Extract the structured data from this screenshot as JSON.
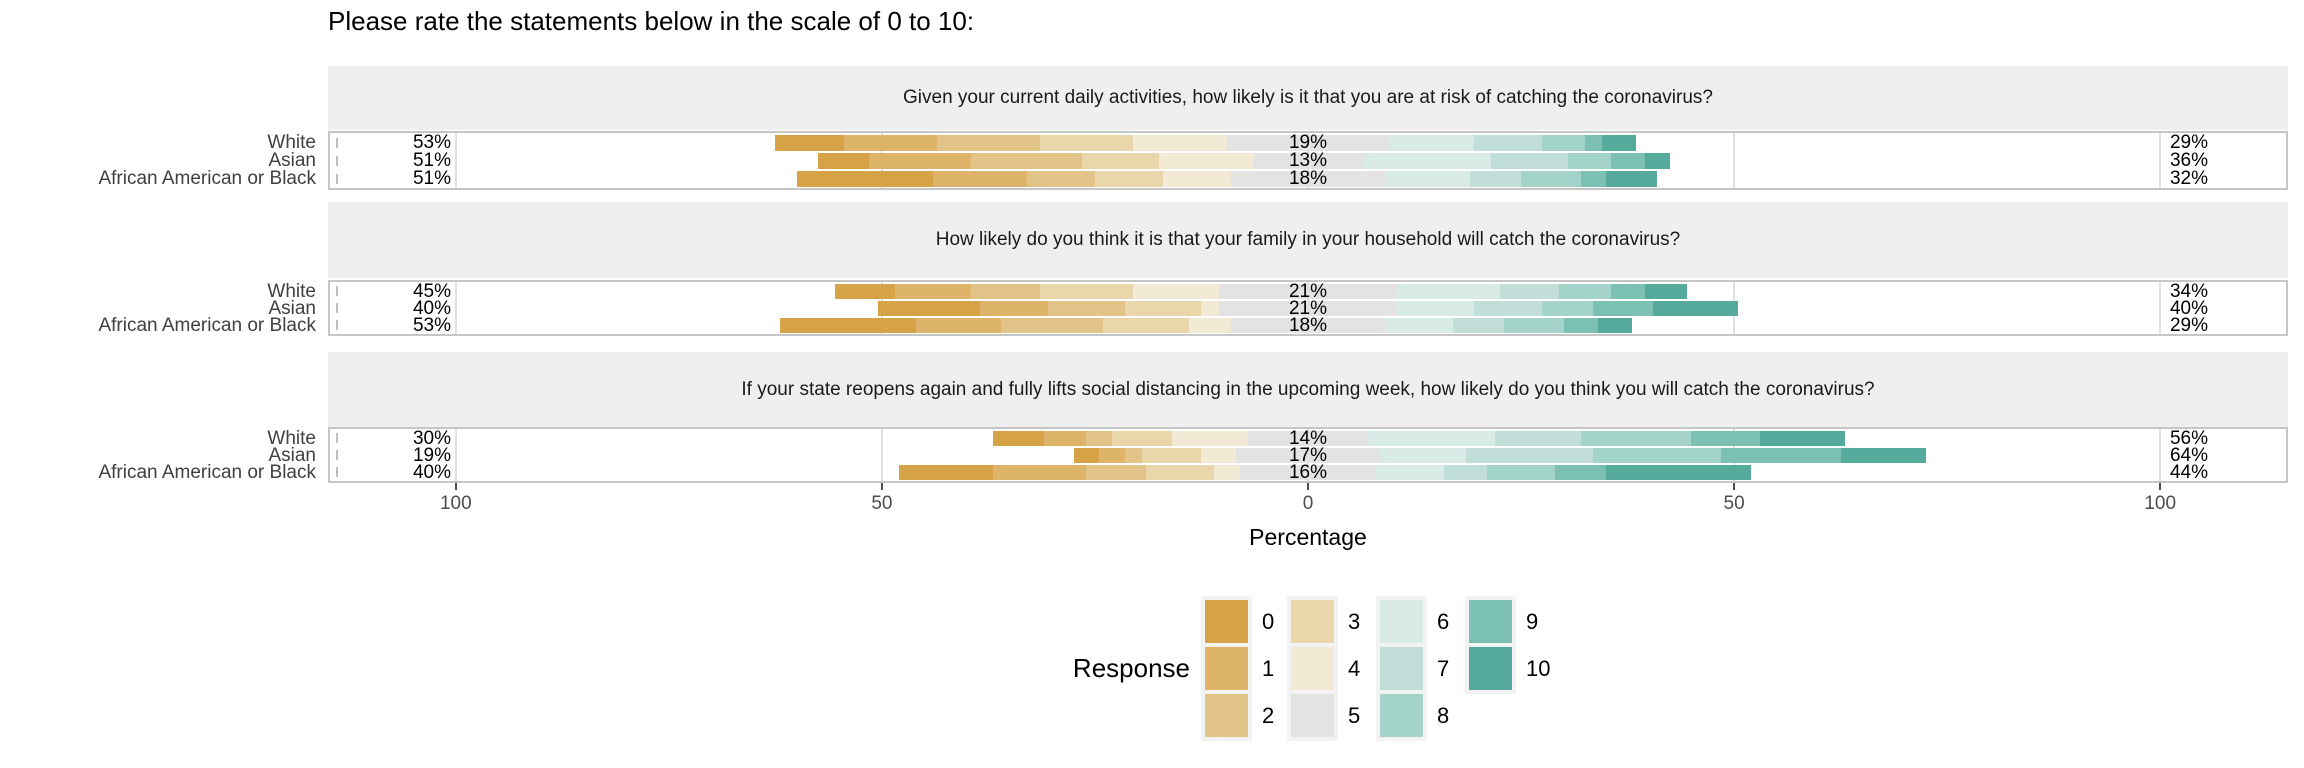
{
  "title": "Please rate the statements below in the scale of 0 to 10:",
  "chart_data": {
    "type": "bar",
    "subtype": "diverging-stacked-likert",
    "legend_title": "Response",
    "responses": [
      "0",
      "1",
      "2",
      "3",
      "4",
      "5",
      "6",
      "7",
      "8",
      "9",
      "10"
    ],
    "palette": [
      "#d6a346",
      "#ddb46a",
      "#e2c488",
      "#e9d6ab",
      "#f3ead6",
      "#e3e3e3",
      "#d9ebe7",
      "#c1ded8",
      "#a3d3c9",
      "#7cc0b4",
      "#56aa9b"
    ],
    "ui_colors": {
      "strip_background": "#efefef",
      "panel_border": "#c6c6c6",
      "gridline": "#e0e0e0",
      "axis_text": "#4d4d4d",
      "category_text": "#404040"
    },
    "categories": [
      "White",
      "Asian",
      "African American or Black"
    ],
    "axis": {
      "xlabel": "Percentage",
      "ticks": [
        -100,
        -50,
        0,
        50,
        100
      ],
      "tick_labels": [
        "100",
        "50",
        "0",
        "50",
        "100"
      ],
      "xlim": [
        -115,
        115
      ]
    },
    "facets": [
      {
        "question": "Given your current daily activities, how likely is it that you are at risk of catching the coronavirus?",
        "rows": [
          {
            "group": "White",
            "left_label": "53%",
            "mid_label": "19%",
            "right_label": "29%",
            "values": [
              8,
              11,
              12,
              11,
              11,
              19,
              10,
              8,
              5,
              2,
              4
            ]
          },
          {
            "group": "Asian",
            "left_label": "51%",
            "mid_label": "13%",
            "right_label": "36%",
            "values": [
              6,
              12,
              13,
              9,
              11,
              13,
              15,
              9,
              5,
              4,
              3
            ]
          },
          {
            "group": "African American or Black",
            "left_label": "51%",
            "mid_label": "18%",
            "right_label": "32%",
            "values": [
              16,
              11,
              8,
              8,
              8,
              18,
              10,
              6,
              7,
              3,
              6
            ]
          }
        ]
      },
      {
        "question": "How likely do you think it is that your family in your household will catch the coronavirus?",
        "rows": [
          {
            "group": "White",
            "left_label": "45%",
            "mid_label": "21%",
            "right_label": "34%",
            "values": [
              7,
              9,
              8,
              11,
              10,
              21,
              12,
              7,
              6,
              4,
              5
            ]
          },
          {
            "group": "Asian",
            "left_label": "40%",
            "mid_label": "21%",
            "right_label": "40%",
            "values": [
              12,
              8,
              9,
              9,
              2,
              21,
              9,
              8,
              6,
              7,
              10
            ]
          },
          {
            "group": "African American or Black",
            "left_label": "53%",
            "mid_label": "18%",
            "right_label": "29%",
            "values": [
              16,
              10,
              12,
              10,
              5,
              18,
              8,
              6,
              7,
              4,
              4
            ]
          }
        ]
      },
      {
        "question": "If your state reopens again and fully lifts social distancing in the upcoming week, how likely do you think you will catch the coronavirus?",
        "rows": [
          {
            "group": "White",
            "left_label": "30%",
            "mid_label": "14%",
            "right_label": "56%",
            "values": [
              6,
              5,
              3,
              7,
              9,
              14,
              15,
              10,
              13,
              8,
              10
            ]
          },
          {
            "group": "Asian",
            "left_label": "19%",
            "mid_label": "17%",
            "right_label": "64%",
            "values": [
              3,
              3,
              2,
              7,
              4,
              17,
              10,
              15,
              15,
              14,
              10
            ]
          },
          {
            "group": "African American or Black",
            "left_label": "40%",
            "mid_label": "16%",
            "right_label": "44%",
            "values": [
              11,
              11,
              7,
              8,
              3,
              16,
              8,
              5,
              8,
              6,
              17
            ]
          }
        ]
      }
    ]
  }
}
